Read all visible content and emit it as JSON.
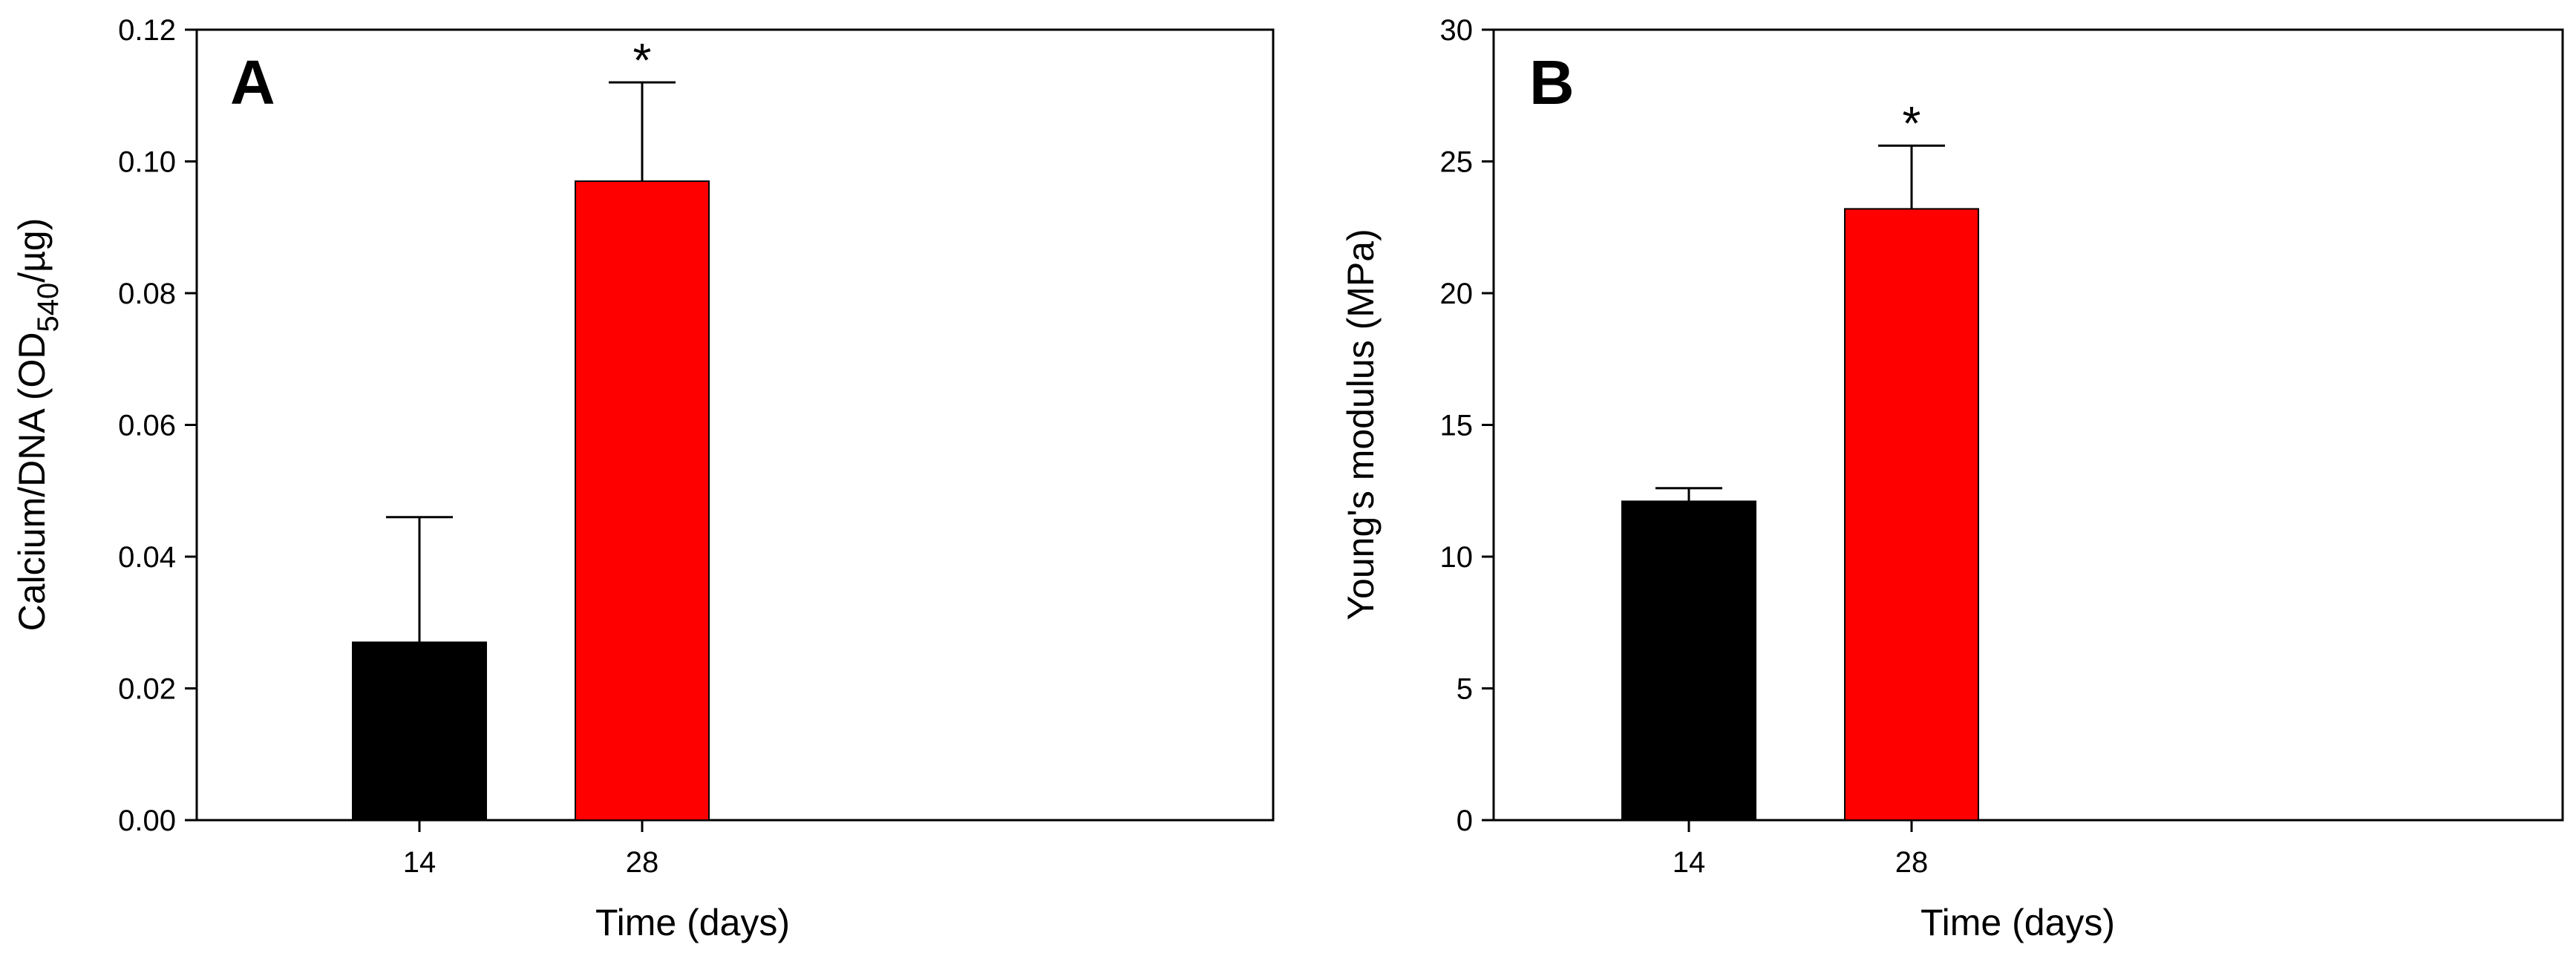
{
  "chart_data": [
    {
      "type": "bar",
      "panel": "A",
      "categories": [
        "14",
        "28"
      ],
      "values": [
        0.027,
        0.097
      ],
      "errors": [
        0.019,
        0.015
      ],
      "significance": [
        "",
        "*"
      ],
      "bar_colors": [
        "#000000",
        "#ff0000"
      ],
      "xlabel": "Time (days)",
      "ylabel": {
        "main": "Calcium/DNA (OD",
        "subscript": "540",
        "tail": "/µg)"
      },
      "ylim": [
        0,
        0.12
      ],
      "yticks": [
        "0.00",
        "0.02",
        "0.04",
        "0.06",
        "0.08",
        "0.10",
        "0.12"
      ],
      "grid": false
    },
    {
      "type": "bar",
      "panel": "B",
      "categories": [
        "14",
        "28"
      ],
      "values": [
        12.1,
        23.2
      ],
      "errors": [
        0.5,
        2.4
      ],
      "significance": [
        "",
        "*"
      ],
      "bar_colors": [
        "#000000",
        "#ff0000"
      ],
      "xlabel": "Time (days)",
      "ylabel": {
        "main": "Young's modulus (MPa)",
        "subscript": "",
        "tail": ""
      },
      "ylim": [
        0,
        30
      ],
      "yticks": [
        "0",
        "5",
        "10",
        "15",
        "20",
        "25",
        "30"
      ],
      "grid": false
    }
  ]
}
